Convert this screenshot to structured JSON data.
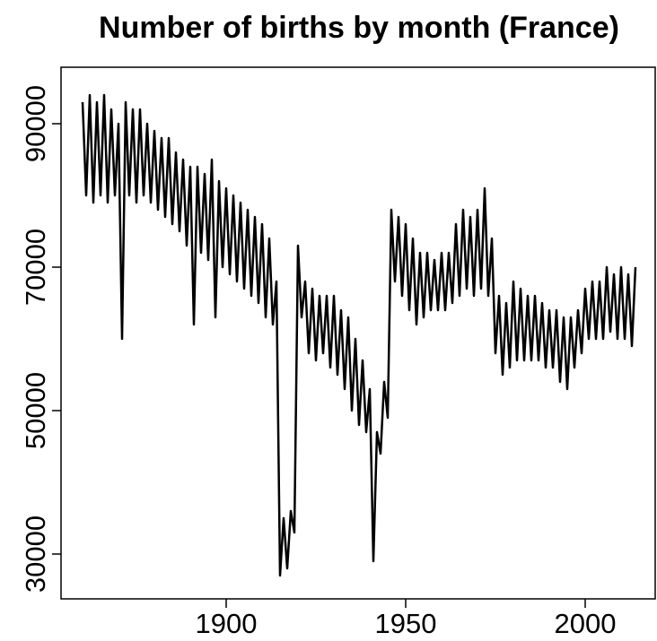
{
  "chart_data": {
    "type": "line",
    "title": "Number of births by month (France)",
    "x": [
      1860,
      1861,
      1862,
      1863,
      1864,
      1865,
      1866,
      1867,
      1868,
      1869,
      1870,
      1871,
      1872,
      1873,
      1874,
      1875,
      1876,
      1877,
      1878,
      1879,
      1880,
      1881,
      1882,
      1883,
      1884,
      1885,
      1886,
      1887,
      1888,
      1889,
      1890,
      1891,
      1892,
      1893,
      1894,
      1895,
      1896,
      1897,
      1898,
      1899,
      1900,
      1901,
      1902,
      1903,
      1904,
      1905,
      1906,
      1907,
      1908,
      1909,
      1910,
      1911,
      1912,
      1913,
      1914,
      1915,
      1916,
      1917,
      1918,
      1919,
      1920,
      1921,
      1922,
      1923,
      1924,
      1925,
      1926,
      1927,
      1928,
      1929,
      1930,
      1931,
      1932,
      1933,
      1934,
      1935,
      1936,
      1937,
      1938,
      1939,
      1940,
      1941,
      1942,
      1943,
      1944,
      1945,
      1946,
      1947,
      1948,
      1949,
      1950,
      1951,
      1952,
      1953,
      1954,
      1955,
      1956,
      1957,
      1958,
      1959,
      1960,
      1961,
      1962,
      1963,
      1964,
      1965,
      1966,
      1967,
      1968,
      1969,
      1970,
      1971,
      1972,
      1973,
      1974,
      1975,
      1976,
      1977,
      1978,
      1979,
      1980,
      1981,
      1982,
      1983,
      1984,
      1985,
      1986,
      1987,
      1988,
      1989,
      1990,
      1991,
      1992,
      1993,
      1994,
      1995,
      1996,
      1997,
      1998,
      1999,
      2000,
      2001,
      2002,
      2003,
      2004,
      2005,
      2006,
      2007,
      2008,
      2009,
      2010,
      2011,
      2012,
      2013,
      2014
    ],
    "series": [
      {
        "color": "#000000",
        "values": [
          93000,
          80000,
          94000,
          79000,
          93000,
          80000,
          94000,
          79000,
          92000,
          80000,
          90000,
          60000,
          93000,
          80000,
          92000,
          79000,
          92000,
          80000,
          90000,
          79000,
          89000,
          78000,
          88000,
          77000,
          88000,
          76000,
          86000,
          75000,
          85000,
          73000,
          84000,
          62000,
          84000,
          72000,
          83000,
          71000,
          85000,
          63000,
          82000,
          70000,
          81000,
          69000,
          80000,
          68000,
          79000,
          67000,
          78000,
          66000,
          77000,
          65000,
          76000,
          63000,
          74000,
          62000,
          68000,
          27000,
          35000,
          28000,
          36000,
          33000,
          73000,
          63000,
          68000,
          58000,
          67000,
          57000,
          66000,
          58000,
          66000,
          56000,
          66000,
          55000,
          64000,
          53000,
          63000,
          50000,
          60000,
          48000,
          57000,
          47000,
          53000,
          29000,
          47000,
          44000,
          54000,
          49000,
          78000,
          68000,
          77000,
          66000,
          76000,
          64000,
          74000,
          62000,
          72000,
          63000,
          72000,
          64000,
          71000,
          64000,
          72000,
          64000,
          72000,
          65000,
          76000,
          66000,
          78000,
          67000,
          77000,
          66000,
          78000,
          67000,
          81000,
          66000,
          74000,
          58000,
          66000,
          55000,
          65000,
          56000,
          68000,
          57000,
          67000,
          57000,
          66000,
          57000,
          66000,
          57000,
          65000,
          56000,
          64000,
          56000,
          64000,
          54000,
          63000,
          53000,
          63000,
          56000,
          64000,
          58000,
          67000,
          60000,
          68000,
          60000,
          68000,
          60000,
          70000,
          61000,
          69000,
          60000,
          70000,
          60000,
          69000,
          59000,
          70000
        ]
      }
    ],
    "xlim": [
      1854,
      2019.5
    ],
    "ylim": [
      23750,
      97875
    ],
    "xticks": [
      1900,
      1950,
      2000
    ],
    "yticks": [
      30000,
      50000,
      70000,
      90000
    ]
  }
}
